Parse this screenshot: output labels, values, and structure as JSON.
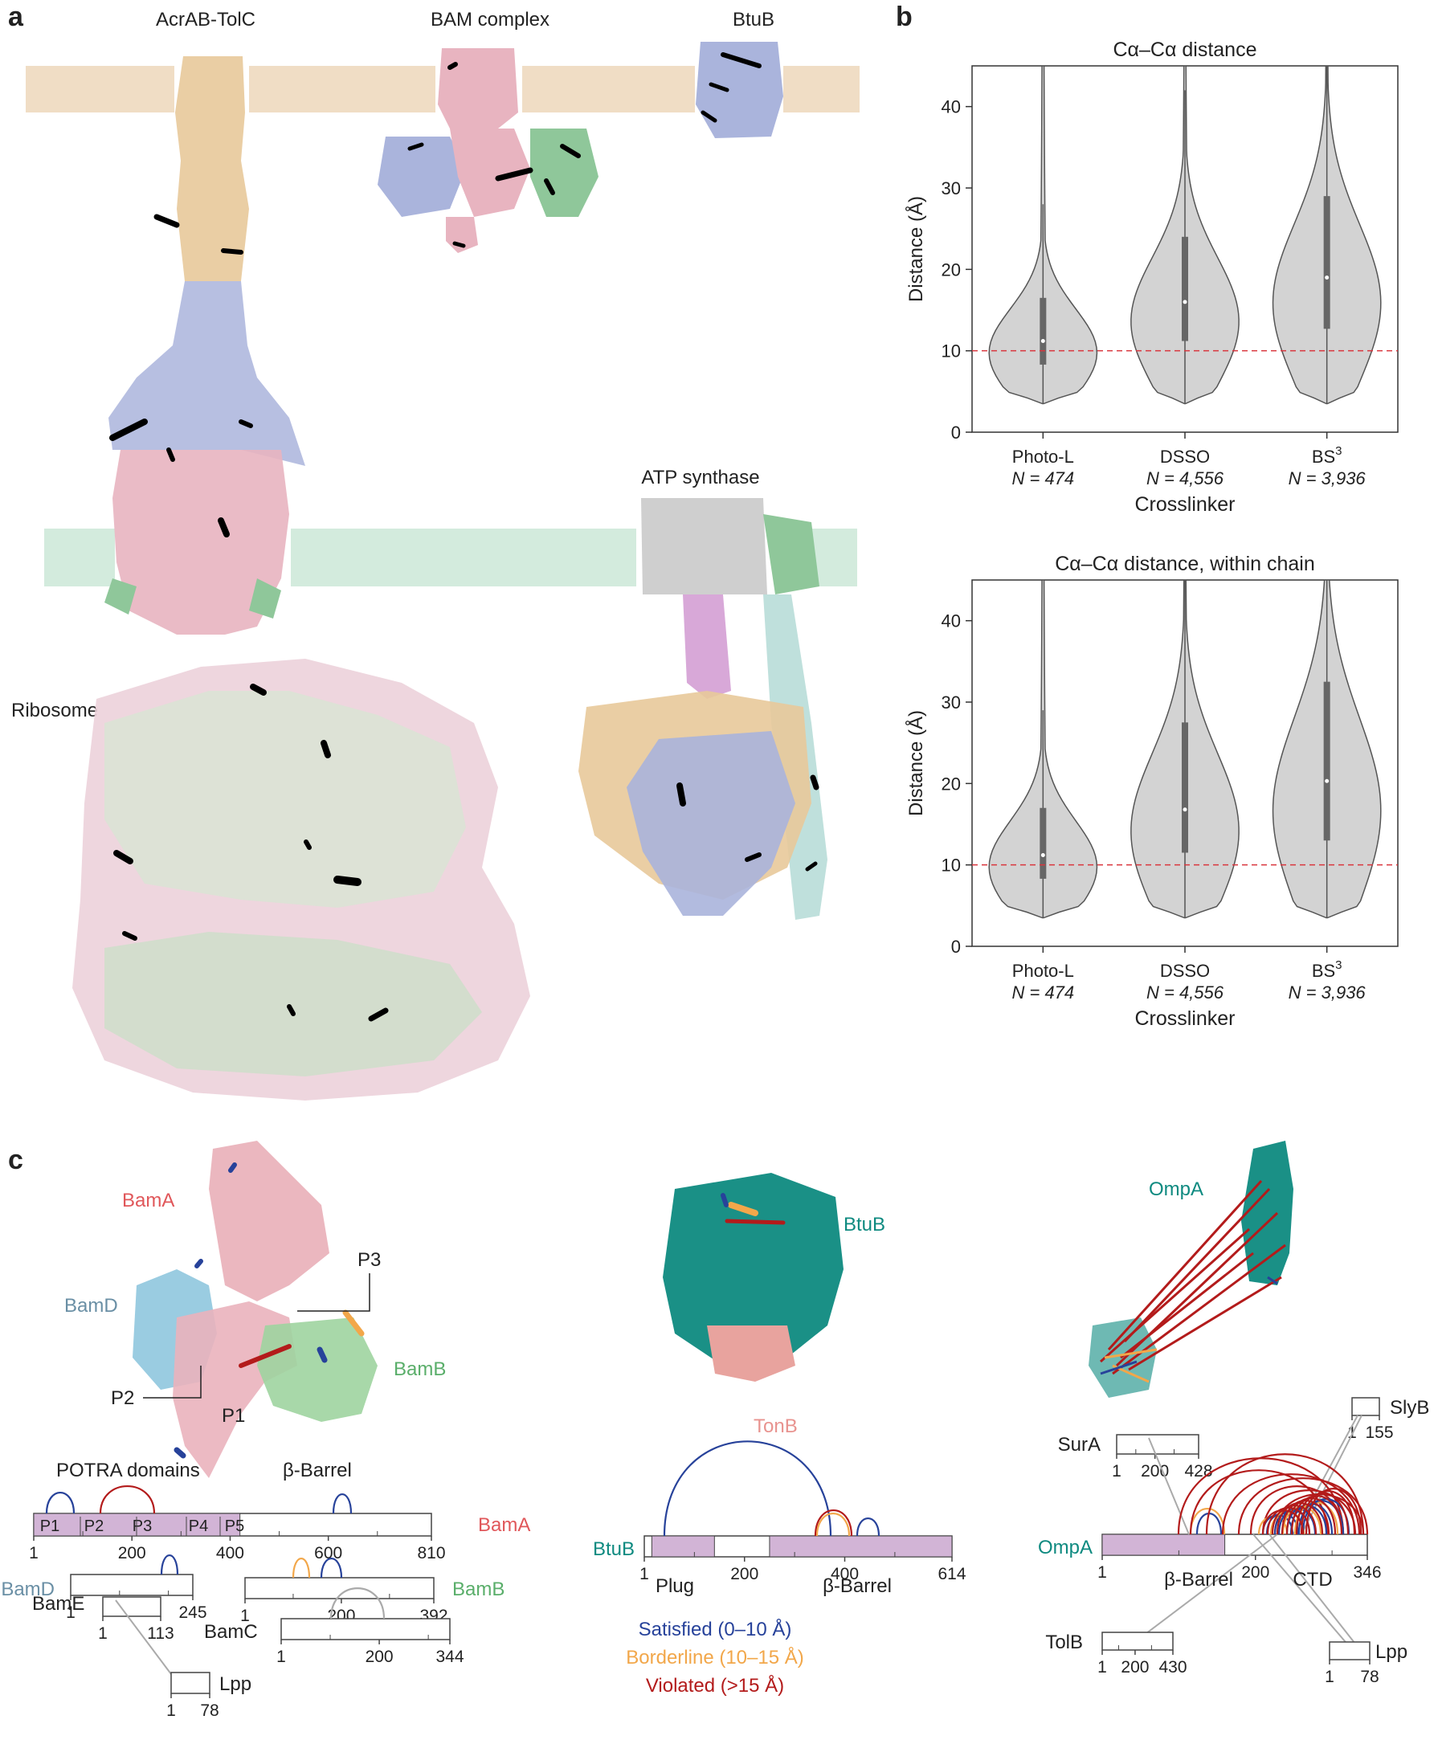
{
  "panels": {
    "a": "a",
    "b": "b",
    "c": "c"
  },
  "panel_a": {
    "structures": [
      "AcrAB-TolC",
      "BAM complex",
      "BtuB",
      "ATP synthase",
      "Ribosome"
    ]
  },
  "panel_b": {
    "chart_data": [
      {
        "type": "violin",
        "title": "Cα–Cα distance",
        "xlabel": "Crosslinker",
        "ylabel": "Distance (Å)",
        "ylim": [
          0,
          45
        ],
        "yticks": [
          0,
          10,
          20,
          30,
          40
        ],
        "threshold": 10,
        "categories": [
          {
            "name": "Photo-L",
            "n": "N = 474",
            "min": 3.5,
            "q1": 8.3,
            "median": 11.2,
            "q3": 16.5,
            "whisker_high": 28,
            "max": 45
          },
          {
            "name": "DSSO",
            "n": "N = 4,556",
            "min": 3.5,
            "q1": 11.2,
            "median": 16,
            "q3": 24,
            "whisker_high": 42,
            "max": 45
          },
          {
            "name": "BS3",
            "n": "N = 3,936",
            "min": 3.5,
            "q1": 12.7,
            "median": 19,
            "q3": 29,
            "whisker_high": 45,
            "max": 45
          }
        ]
      },
      {
        "type": "violin",
        "title": "Cα–Cα distance, within chain",
        "xlabel": "Crosslinker",
        "ylabel": "Distance (Å)",
        "ylim": [
          0,
          45
        ],
        "yticks": [
          0,
          10,
          20,
          30,
          40
        ],
        "threshold": 10,
        "categories": [
          {
            "name": "Photo-L",
            "n": "N = 474",
            "min": 3.5,
            "q1": 8.3,
            "median": 11.2,
            "q3": 17,
            "whisker_high": 29,
            "max": 45
          },
          {
            "name": "DSSO",
            "n": "N = 4,556",
            "min": 3.5,
            "q1": 11.5,
            "median": 16.8,
            "q3": 27.5,
            "whisker_high": 45,
            "max": 45
          },
          {
            "name": "BS3",
            "n": "N = 3,936",
            "min": 3.5,
            "q1": 13,
            "median": 20.3,
            "q3": 32.5,
            "whisker_high": 45,
            "max": 45
          }
        ]
      }
    ]
  },
  "panel_c": {
    "bam": {
      "labels": {
        "bama": "BamA",
        "bamd": "BamD",
        "bamb": "BamB",
        "p1": "P1",
        "p2": "P2",
        "p3": "P3"
      },
      "potra_label": "POTRA domains",
      "barrel_label": "β-Barrel",
      "bama_track": {
        "name": "BamA",
        "length": 810,
        "ticks": [
          "1",
          "200",
          "400",
          "600",
          "810"
        ],
        "domains": [
          "P1",
          "P2",
          "P3",
          "P4",
          "P5"
        ]
      },
      "bamd_track": {
        "name": "BamD",
        "ticks": [
          "1",
          "245"
        ]
      },
      "bamb_track": {
        "name": "BamB",
        "ticks": [
          "1",
          "200",
          "392"
        ]
      },
      "bame_track": {
        "name": "BamE",
        "ticks": [
          "1",
          "113"
        ]
      },
      "bamc_track": {
        "name": "BamC",
        "ticks": [
          "1",
          "200",
          "344"
        ]
      },
      "lpp_track": {
        "name": "Lpp",
        "ticks": [
          "1",
          "78"
        ]
      }
    },
    "btub": {
      "labels": {
        "btub": "BtuB",
        "tonb": "TonB"
      },
      "track": {
        "name": "BtuB",
        "ticks": [
          "1",
          "200",
          "400",
          "614"
        ],
        "plug": "Plug",
        "barrel": "β-Barrel"
      }
    },
    "ompa": {
      "labels": {
        "ompa": "OmpA"
      },
      "track": {
        "name": "OmpA",
        "ticks": [
          "1",
          "200",
          "346"
        ],
        "barrel": "β-Barrel",
        "ctd": "CTD"
      },
      "sura": {
        "name": "SurA",
        "ticks": [
          "1",
          "200",
          "428"
        ]
      },
      "slyb": {
        "name": "SlyB",
        "ticks": [
          "1",
          "155"
        ]
      },
      "tolb": {
        "name": "TolB",
        "ticks": [
          "1",
          "200",
          "430"
        ]
      },
      "lpp": {
        "name": "Lpp",
        "ticks": [
          "1",
          "78"
        ]
      }
    },
    "legend": {
      "satisfied": "Satisfied (0–10 Å)",
      "borderline": "Borderline (10–15 Å)",
      "violated": "Violated (>15 Å)"
    }
  },
  "colors": {
    "outer_membrane": "#f0ddc5",
    "inner_membrane": "#d3ebdd",
    "pink": "#e8b4c0",
    "blue": "#aab4dc",
    "tan": "#e8c99a",
    "green": "#8fc79a",
    "teal": "#0e8a80",
    "domain": "#d2b4d6",
    "satisfied": "#27429a",
    "borderline": "#f2a74a",
    "violated": "#b31b1b",
    "bama_label": "#e0575a",
    "bamd_label": "#6a8fa5",
    "bamb_label": "#5aae6a",
    "tonb_label": "#e8938f",
    "threshold": "#d9363e"
  }
}
